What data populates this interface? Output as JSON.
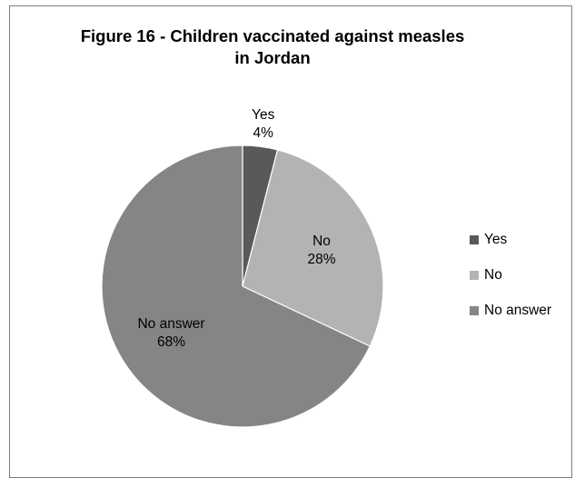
{
  "chart_data": {
    "type": "pie",
    "title_lines": [
      "Figure 16 - Children vaccinated against measles",
      "in Jordan"
    ],
    "categories": [
      "Yes",
      "No",
      "No answer"
    ],
    "values": [
      4,
      28,
      68
    ],
    "value_labels": [
      "4%",
      "28%",
      "68%"
    ],
    "unit": "%",
    "colors": [
      "#595959",
      "#b3b3b3",
      "#858585"
    ],
    "legend_position": "right",
    "start_angle_deg": 0,
    "direction": "clockwise"
  }
}
